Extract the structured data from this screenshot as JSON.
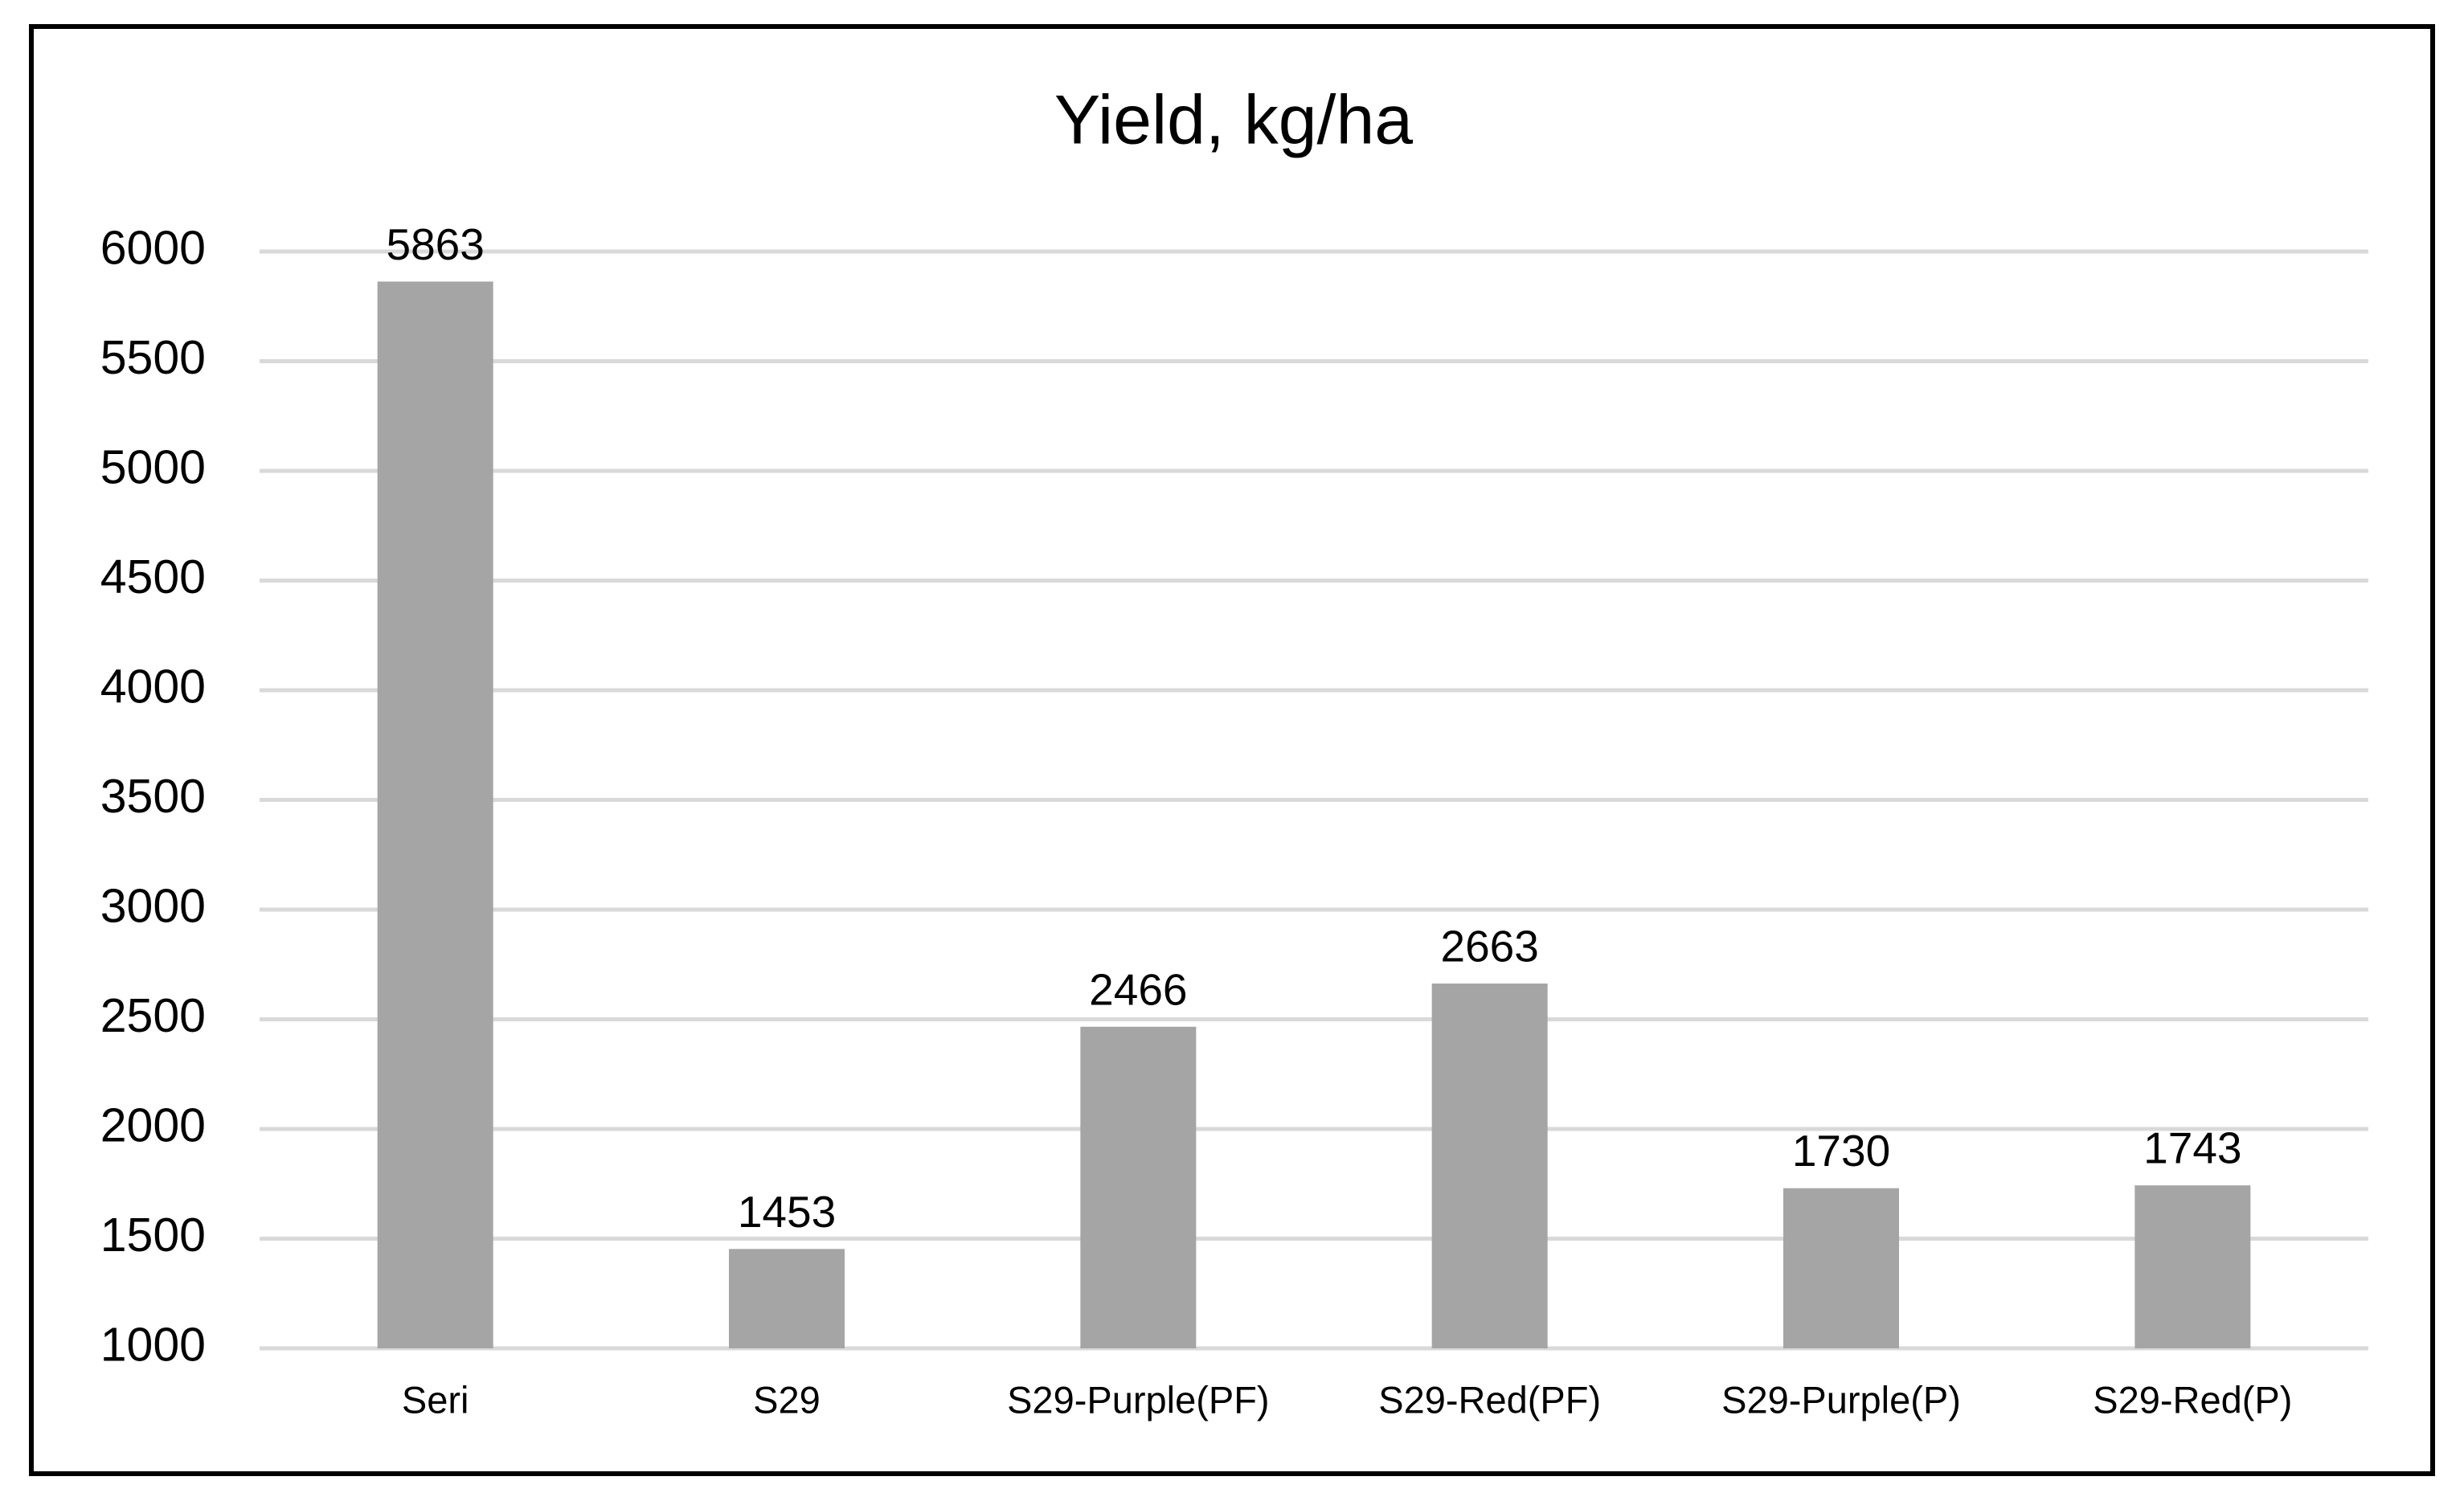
{
  "chart_data": {
    "type": "bar",
    "title": "Yield, kg/ha",
    "categories": [
      "Seri",
      "S29",
      "S29-Purple(PF)",
      "S29-Red(PF)",
      "S29-Purple(P)",
      "S29-Red(P)"
    ],
    "values": [
      5863,
      1453,
      2466,
      2663,
      1730,
      1743
    ],
    "color": "#a5a5a5",
    "ylim": [
      1000,
      6000
    ],
    "yticks": [
      1000,
      1500,
      2000,
      2500,
      3000,
      3500,
      4000,
      4500,
      5000,
      5500,
      6000
    ],
    "grid": true
  }
}
